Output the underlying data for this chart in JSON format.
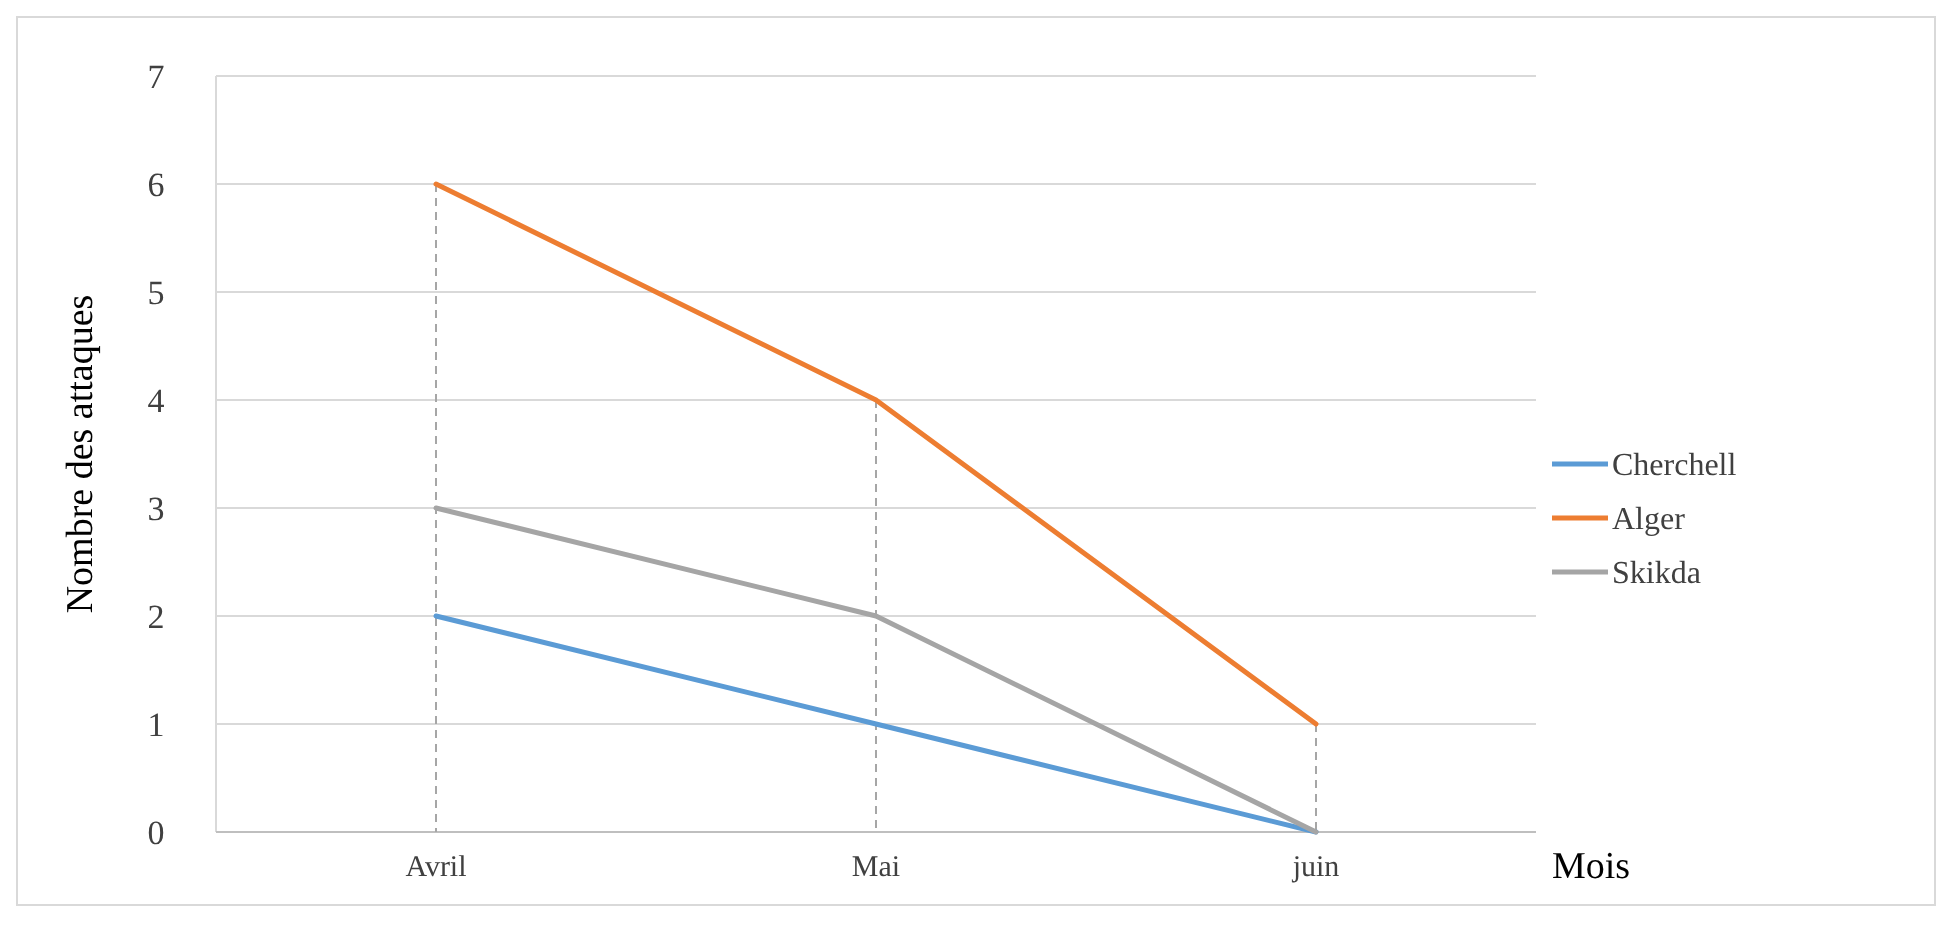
{
  "chart_data": {
    "type": "line",
    "xlabel": "Mois",
    "ylabel": "Nombre des attaques",
    "categories": [
      "Avril",
      "Mai",
      "juin"
    ],
    "series": [
      {
        "name": "Cherchell",
        "color": "#5b9bd5",
        "values": [
          2,
          1,
          0
        ]
      },
      {
        "name": "Alger",
        "color": "#ed7d31",
        "values": [
          6,
          4,
          1
        ]
      },
      {
        "name": "Skikda",
        "color": "#a5a5a5",
        "values": [
          3,
          2,
          0
        ]
      }
    ],
    "ylim": [
      0,
      7
    ],
    "yticks": [
      0,
      1,
      2,
      3,
      4,
      5,
      6,
      7
    ],
    "grid": "y",
    "legend": "right",
    "marker": "none",
    "line_style": "solid"
  }
}
